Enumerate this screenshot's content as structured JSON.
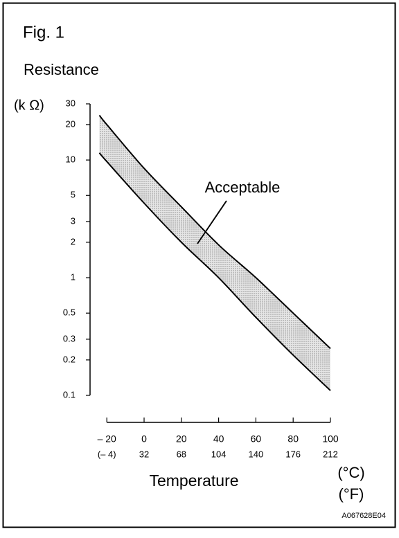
{
  "chart_data": {
    "type": "line",
    "title": "Fig. 1",
    "y_label": "Resistance",
    "y_unit": "(k Ω)",
    "x_label": "Temperature",
    "x_unit": "(°C)",
    "x2_unit": "(°F)",
    "annotation": "Acceptable",
    "code": "A067628E04",
    "x": [
      -24,
      -20,
      0,
      20,
      40,
      60,
      80,
      100
    ],
    "series": [
      {
        "name": "upper limit",
        "color": "#000000",
        "values": [
          24,
          20,
          8.5,
          4.0,
          1.9,
          1.0,
          0.5,
          0.25
        ]
      },
      {
        "name": "lower limit",
        "color": "#000000",
        "values": [
          11.5,
          9.7,
          4.3,
          2.0,
          1.0,
          0.46,
          0.22,
          0.11
        ]
      }
    ],
    "band_between_series": true,
    "band_color": "#cfcfcf",
    "xlim": [
      -29,
      100
    ],
    "xticks": [
      {
        "value": -20,
        "label": "– 20"
      },
      0,
      20,
      40,
      60,
      80,
      100
    ],
    "x2lim": [
      -20.2,
      212
    ],
    "x2ticks": [
      {
        "value": -4,
        "label": "(– 4)"
      },
      32,
      68,
      104,
      140,
      176,
      212
    ],
    "ylim": [
      0.1,
      30
    ],
    "log_y": true,
    "yticks": [
      0.1,
      0.2,
      0.3,
      0.5,
      1,
      2,
      3,
      5,
      10,
      20,
      30
    ],
    "grid": false
  }
}
